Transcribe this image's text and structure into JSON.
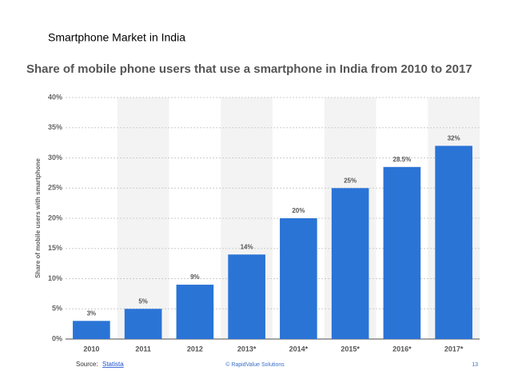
{
  "slide_title": "Smartphone Market in India",
  "chart_data": {
    "type": "bar",
    "title": "Share of mobile phone users that use a smartphone in India from 2010 to 2017",
    "y_label": "Share of mobile users with smartphone",
    "categories": [
      "2010",
      "2011",
      "2012",
      "2013*",
      "2014*",
      "2015*",
      "2016*",
      "2017*"
    ],
    "values": [
      3,
      5,
      9,
      14,
      20,
      25,
      28.5,
      32
    ],
    "value_labels": [
      "3%",
      "5%",
      "9%",
      "14%",
      "20%",
      "25%",
      "28.5%",
      "32%"
    ],
    "color": "#2a74d6",
    "ylim": [
      0,
      40
    ],
    "yticks": [
      {
        "value": 0,
        "label": "0%"
      },
      {
        "value": 5,
        "label": "5%"
      },
      {
        "value": 10,
        "label": "10%"
      },
      {
        "value": 15,
        "label": "15%"
      },
      {
        "value": 20,
        "label": "20%"
      },
      {
        "value": 25,
        "label": "25%"
      },
      {
        "value": 30,
        "label": "30%"
      },
      {
        "value": 35,
        "label": "35%"
      },
      {
        "value": 40,
        "label": "40%"
      }
    ],
    "grid": true
  },
  "footer": {
    "source_label": "Source:",
    "source_link": "Statista",
    "copyright": "© RapidValue Solutions",
    "page_number": "13"
  }
}
